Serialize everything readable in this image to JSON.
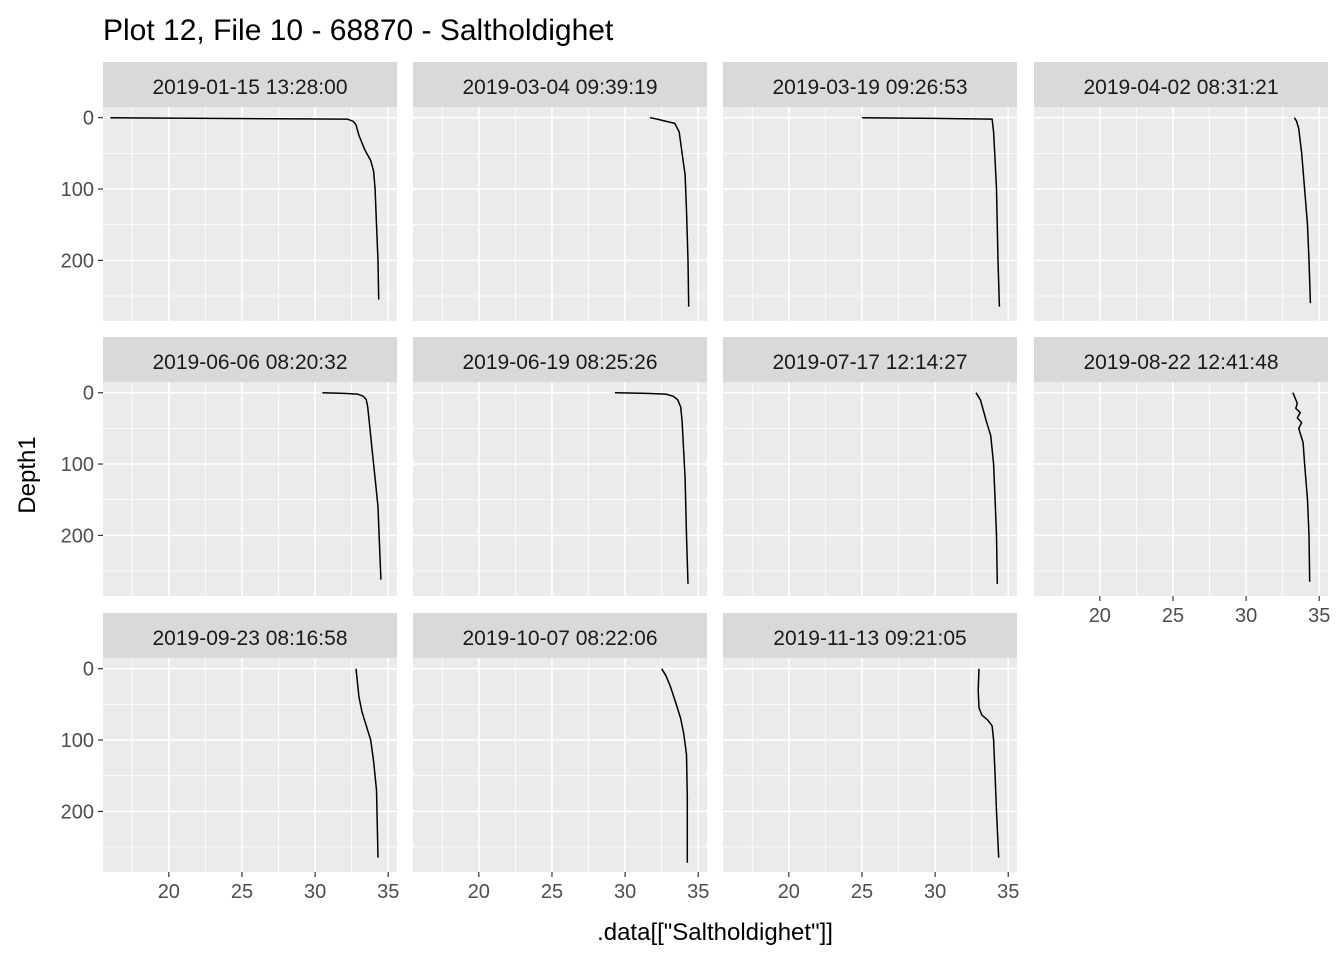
{
  "chart_data": {
    "type": "line",
    "title": "Plot 12, File 10 - 68870  -  Saltholdighet",
    "xlabel": ".data[[\"Saltholdighet\"]]",
    "ylabel": "Depth1",
    "xlim": [
      15.5,
      35.6
    ],
    "ylim": [
      -15,
      285
    ],
    "y_reversed": true,
    "x_ticks": [
      20,
      25,
      30,
      35
    ],
    "y_ticks": [
      0,
      100,
      200
    ],
    "grid": true,
    "legend": "none",
    "colors": {
      "panel_bg": "#ebebeb",
      "strip_bg": "#d9d9d9",
      "grid": "#ffffff",
      "line": "#000000"
    },
    "panels": [
      {
        "label": "2019-01-15 13:28:00",
        "series": [
          {
            "x": [
              16.0,
              23.0,
              32.2,
              32.6,
              32.8,
              33.0,
              33.4,
              33.8,
              34.0,
              34.1,
              34.2,
              34.3,
              34.35
            ],
            "depth": [
              0,
              1,
              2,
              5,
              10,
              25,
              45,
              60,
              75,
              100,
              150,
              200,
              255
            ]
          }
        ]
      },
      {
        "label": "2019-03-04 09:39:19",
        "series": [
          {
            "x": [
              31.7,
              32.2,
              32.6,
              33.0,
              33.4,
              33.7,
              33.9,
              34.1,
              34.2,
              34.3,
              34.35
            ],
            "depth": [
              0,
              2,
              4,
              6,
              8,
              20,
              50,
              80,
              130,
              200,
              265
            ]
          }
        ]
      },
      {
        "label": "2019-03-19 09:26:53",
        "series": [
          {
            "x": [
              25.0,
              30.0,
              33.9,
              34.0,
              34.1,
              34.2,
              34.3,
              34.4
            ],
            "depth": [
              0,
              1,
              2,
              20,
              60,
              100,
              200,
              265
            ]
          }
        ]
      },
      {
        "label": "2019-04-02 08:31:21",
        "series": [
          {
            "x": [
              33.3,
              33.45,
              33.6,
              33.8,
              34.0,
              34.2,
              34.3,
              34.4
            ],
            "depth": [
              0,
              5,
              15,
              50,
              100,
              150,
              200,
              260
            ]
          }
        ]
      },
      {
        "label": "2019-06-06 08:20:32",
        "series": [
          {
            "x": [
              30.5,
              32.0,
              32.9,
              33.3,
              33.5,
              33.6,
              33.7,
              33.9,
              34.1,
              34.3,
              34.4,
              34.5
            ],
            "depth": [
              0,
              1,
              2,
              5,
              10,
              20,
              40,
              80,
              120,
              160,
              210,
              262
            ]
          }
        ]
      },
      {
        "label": "2019-06-19 08:25:26",
        "series": [
          {
            "x": [
              29.3,
              31.5,
              32.8,
              33.3,
              33.6,
              33.8,
              33.9,
              34.0,
              34.1,
              34.2,
              34.3
            ],
            "depth": [
              0,
              1,
              2,
              5,
              10,
              20,
              40,
              80,
              120,
              200,
              268
            ]
          }
        ]
      },
      {
        "label": "2019-07-17 12:14:27",
        "series": [
          {
            "x": [
              32.8,
              33.1,
              33.3,
              33.5,
              33.8,
              34.0,
              34.1,
              34.2,
              34.25
            ],
            "depth": [
              0,
              10,
              25,
              40,
              60,
              100,
              150,
              200,
              268
            ]
          }
        ]
      },
      {
        "label": "2019-08-22 12:41:48",
        "series": [
          {
            "x": [
              33.2,
              33.5,
              33.4,
              33.7,
              33.5,
              33.8,
              33.6,
              33.9,
              34.0,
              34.2,
              34.3,
              34.35
            ],
            "depth": [
              0,
              15,
              22,
              28,
              35,
              42,
              50,
              70,
              100,
              150,
              200,
              265
            ]
          }
        ]
      },
      {
        "label": "2019-09-23 08:16:58",
        "series": [
          {
            "x": [
              32.8,
              32.9,
              33.0,
              33.2,
              33.5,
              33.8,
              34.0,
              34.2,
              34.25,
              34.3
            ],
            "depth": [
              0,
              20,
              40,
              60,
              80,
              100,
              130,
              170,
              220,
              265
            ]
          }
        ]
      },
      {
        "label": "2019-10-07 08:22:06",
        "series": [
          {
            "x": [
              32.5,
              32.8,
              33.1,
              33.5,
              33.8,
              34.0,
              34.2,
              34.25,
              34.25
            ],
            "depth": [
              0,
              10,
              25,
              50,
              70,
              90,
              120,
              180,
              272
            ]
          }
        ]
      },
      {
        "label": "2019-11-13 09:21:05",
        "series": [
          {
            "x": [
              33.0,
              32.95,
              33.0,
              33.2,
              33.6,
              33.9,
              34.0,
              34.1,
              34.2,
              34.35
            ],
            "depth": [
              0,
              30,
              55,
              65,
              72,
              80,
              100,
              150,
              200,
              265
            ]
          }
        ]
      }
    ]
  }
}
